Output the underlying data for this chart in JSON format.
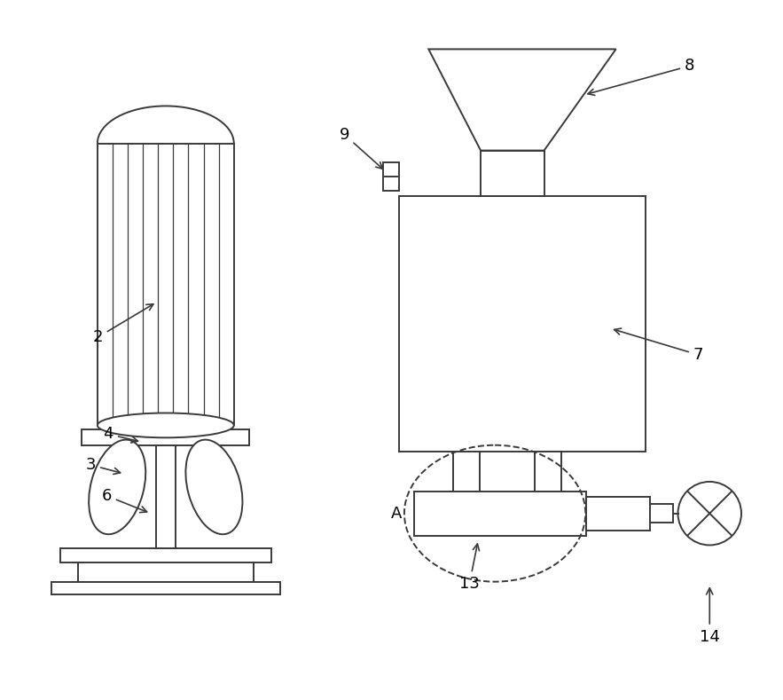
{
  "bg_color": "#ffffff",
  "line_color": "#3a3a3a",
  "line_width": 1.4,
  "thin_line": 0.9,
  "font_size": 13
}
